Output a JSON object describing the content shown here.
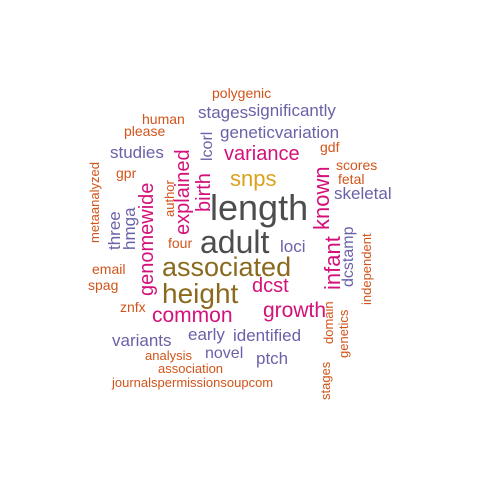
{
  "colors": {
    "gray": "#4d4d4d",
    "olive": "#8b6a1f",
    "gold": "#d9a21b",
    "magenta": "#d4117a",
    "purple": "#6a62a8",
    "orange": "#d2541a"
  },
  "words": [
    {
      "text": "length",
      "color": "gray"
    },
    {
      "text": "adult",
      "color": "gray"
    },
    {
      "text": "associated",
      "color": "olive"
    },
    {
      "text": "height",
      "color": "olive"
    },
    {
      "text": "snps",
      "color": "gold"
    },
    {
      "text": "variance",
      "color": "magenta"
    },
    {
      "text": "known",
      "color": "magenta"
    },
    {
      "text": "infant",
      "color": "magenta"
    },
    {
      "text": "birth",
      "color": "magenta"
    },
    {
      "text": "explained",
      "color": "magenta"
    },
    {
      "text": "genomewide",
      "color": "magenta"
    },
    {
      "text": "common",
      "color": "magenta"
    },
    {
      "text": "growth",
      "color": "magenta"
    },
    {
      "text": "dcst",
      "color": "magenta"
    },
    {
      "text": "significantly",
      "color": "purple"
    },
    {
      "text": "stages",
      "color": "purple"
    },
    {
      "text": "geneticvariation",
      "color": "purple"
    },
    {
      "text": "studies",
      "color": "purple"
    },
    {
      "text": "lcorl",
      "color": "purple"
    },
    {
      "text": "skeletal",
      "color": "purple"
    },
    {
      "text": "three",
      "color": "purple"
    },
    {
      "text": "hmga",
      "color": "purple"
    },
    {
      "text": "loci",
      "color": "purple"
    },
    {
      "text": "dcstamp",
      "color": "purple"
    },
    {
      "text": "identified",
      "color": "purple"
    },
    {
      "text": "variants",
      "color": "purple"
    },
    {
      "text": "early",
      "color": "purple"
    },
    {
      "text": "novel",
      "color": "purple"
    },
    {
      "text": "ptch",
      "color": "purple"
    },
    {
      "text": "polygenic",
      "color": "orange"
    },
    {
      "text": "human",
      "color": "orange"
    },
    {
      "text": "please",
      "color": "orange"
    },
    {
      "text": "gdf",
      "color": "orange"
    },
    {
      "text": "scores",
      "color": "orange"
    },
    {
      "text": "fetal",
      "color": "orange"
    },
    {
      "text": "metaanalyzed",
      "color": "orange"
    },
    {
      "text": "gpr",
      "color": "orange"
    },
    {
      "text": "author",
      "color": "orange"
    },
    {
      "text": "four",
      "color": "orange"
    },
    {
      "text": "independent",
      "color": "orange"
    },
    {
      "text": "email",
      "color": "orange"
    },
    {
      "text": "spag",
      "color": "orange"
    },
    {
      "text": "znfx",
      "color": "orange"
    },
    {
      "text": "domain",
      "color": "orange"
    },
    {
      "text": "genetics",
      "color": "orange"
    },
    {
      "text": "analysis",
      "color": "orange"
    },
    {
      "text": "association",
      "color": "orange"
    },
    {
      "text": "stages",
      "color": "orange"
    },
    {
      "text": "journalspermissionsoupcom",
      "color": "orange"
    }
  ]
}
